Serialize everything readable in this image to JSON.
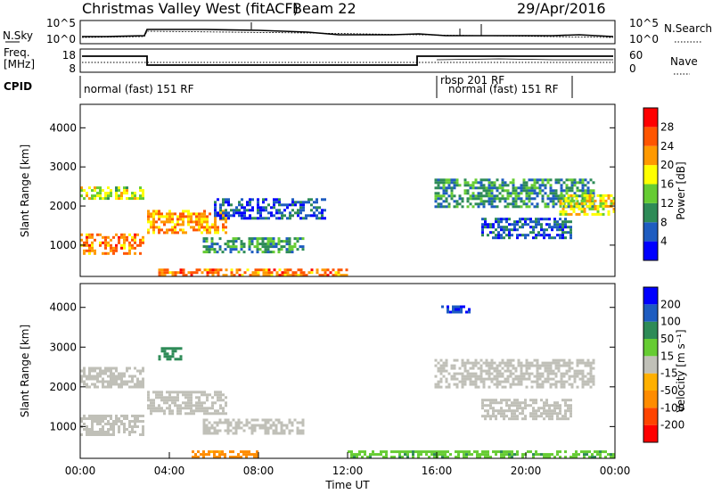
{
  "header": {
    "title": "Christmas Valley West (fitACF)",
    "beam": "Beam 22",
    "date": "29/Apr/2016"
  },
  "top_panels": {
    "nsky_label": "N.Sky",
    "nsky_ticks": [
      "10^5",
      "10^0"
    ],
    "nsearch_label": "N.Search",
    "nsearch_ticks": [
      "10^5",
      "10^0"
    ],
    "freq_label_1": "Freq.",
    "freq_label_2": "[MHz]",
    "freq_ticks": [
      "18",
      "8"
    ],
    "nave_label": "Nave",
    "nave_ticks": [
      "60",
      "0"
    ],
    "cpid_label": "CPID",
    "cpid_entries": [
      "normal (fast) 151 RF",
      "rbsp 201 RF",
      "normal (fast) 151 RF"
    ]
  },
  "colors": {
    "power": [
      "#0000ff",
      "#1e5cc0",
      "#2e8b57",
      "#66cc33",
      "#ffff00",
      "#ff9900",
      "#ff5500",
      "#ff0000"
    ],
    "velocity": [
      "#ff0000",
      "#ff4400",
      "#ff8c00",
      "#ffb000",
      "#c0c0b8",
      "#66cc33",
      "#2e8b57",
      "#1e5cc0",
      "#0000ff"
    ]
  },
  "chart_data": [
    {
      "type": "heatmap",
      "name": "power-panel",
      "ylabel": "Slant Range [km]",
      "yticks": [
        "1000",
        "2000",
        "3000",
        "4000"
      ],
      "ylim": [
        200,
        4600
      ],
      "colorbar_label": "Power [dB]",
      "colorbar_ticks": [
        "4",
        "8",
        "12",
        "16",
        "20",
        "24",
        "28"
      ],
      "bands": [
        {
          "x": [
            0.0,
            2.8
          ],
          "y": [
            2200,
            2500
          ],
          "value": 18
        },
        {
          "x": [
            0.0,
            2.8
          ],
          "y": [
            800,
            1300
          ],
          "value": 26
        },
        {
          "x": [
            3.0,
            6.5
          ],
          "y": [
            1300,
            1900
          ],
          "value": 24
        },
        {
          "x": [
            5.5,
            10.0
          ],
          "y": [
            800,
            1200
          ],
          "value": 12
        },
        {
          "x": [
            6.0,
            11.0
          ],
          "y": [
            1700,
            2200
          ],
          "value": 8
        },
        {
          "x": [
            3.5,
            12.0
          ],
          "y": [
            200,
            400
          ],
          "value": 26
        },
        {
          "x": [
            15.9,
            23.0
          ],
          "y": [
            2000,
            2700
          ],
          "value": 12
        },
        {
          "x": [
            18.0,
            22.0
          ],
          "y": [
            1200,
            1700
          ],
          "value": 8
        },
        {
          "x": [
            21.5,
            24.0
          ],
          "y": [
            1800,
            2300
          ],
          "value": 20
        }
      ]
    },
    {
      "type": "heatmap",
      "name": "velocity-panel",
      "ylabel": "Slant Range [km]",
      "yticks": [
        "1000",
        "2000",
        "3000",
        "4000"
      ],
      "ylim": [
        200,
        4600
      ],
      "xlabel": "Time UT",
      "xticks": [
        "00:00",
        "04:00",
        "08:00",
        "12:00",
        "16:00",
        "20:00",
        "00:00"
      ],
      "colorbar_label": "Velocity [m s⁻¹]",
      "colorbar_ticks": [
        "-200",
        "-100",
        "-50",
        "-15",
        "15",
        "50",
        "100",
        "200"
      ],
      "bands": [
        {
          "x": [
            0.0,
            2.8
          ],
          "y": [
            2000,
            2500
          ],
          "value": 0
        },
        {
          "x": [
            0.0,
            2.8
          ],
          "y": [
            800,
            1300
          ],
          "value": 0
        },
        {
          "x": [
            3.0,
            6.5
          ],
          "y": [
            1300,
            1900
          ],
          "value": 0
        },
        {
          "x": [
            3.5,
            4.5
          ],
          "y": [
            2700,
            3000
          ],
          "value": 80
        },
        {
          "x": [
            5.5,
            10.0
          ],
          "y": [
            800,
            1200
          ],
          "value": 0
        },
        {
          "x": [
            5.0,
            8.0
          ],
          "y": [
            200,
            400
          ],
          "value": -60
        },
        {
          "x": [
            16.2,
            17.5
          ],
          "y": [
            3850,
            4050
          ],
          "value": 200
        },
        {
          "x": [
            15.9,
            23.0
          ],
          "y": [
            2000,
            2700
          ],
          "value": 0
        },
        {
          "x": [
            18.0,
            22.0
          ],
          "y": [
            1200,
            1700
          ],
          "value": 0
        },
        {
          "x": [
            12.0,
            24.0
          ],
          "y": [
            200,
            400
          ],
          "value": 40
        }
      ]
    }
  ]
}
